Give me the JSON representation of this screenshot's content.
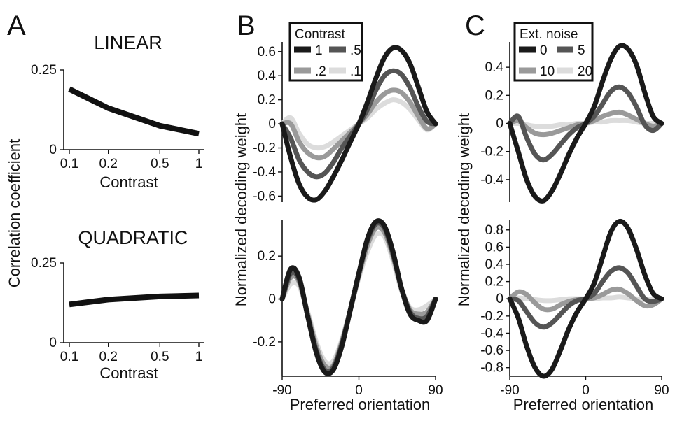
{
  "panels": {
    "a": {
      "letter": "A"
    },
    "b": {
      "letter": "B"
    },
    "c": {
      "letter": "C"
    }
  },
  "labels": {
    "correlation_coefficient": "Correlation coefficient",
    "contrast": "Contrast",
    "normalized_decoding_weight": "Normalized decoding weight",
    "preferred_orientation": "Preferred orientation",
    "linear": "LINEAR",
    "quadratic": "QUADRATIC"
  },
  "chart_data": [
    {
      "id": "A-linear",
      "type": "line",
      "title": "LINEAR",
      "xlabel": "Contrast",
      "ylabel": "Correlation coefficient",
      "x_ticks": [
        "0.1",
        "0.2",
        "0.5",
        "1"
      ],
      "y_ticks": [
        "0",
        "0.25"
      ],
      "ylim": [
        0,
        0.25
      ],
      "x_scale": "log",
      "series": [
        {
          "x": [
            0.1,
            0.2,
            0.5,
            1
          ],
          "values": [
            0.19,
            0.13,
            0.075,
            0.05
          ],
          "color": "#111111"
        }
      ]
    },
    {
      "id": "A-quadratic",
      "type": "line",
      "title": "QUADRATIC",
      "xlabel": "Contrast",
      "ylabel": "Correlation coefficient",
      "x_ticks": [
        "0.1",
        "0.2",
        "0.5",
        "1"
      ],
      "y_ticks": [
        "0",
        "0.25"
      ],
      "ylim": [
        0,
        0.25
      ],
      "x_scale": "log",
      "series": [
        {
          "x": [
            0.1,
            0.2,
            0.5,
            1
          ],
          "values": [
            0.12,
            0.135,
            0.145,
            0.148
          ],
          "color": "#111111"
        }
      ]
    },
    {
      "id": "B-top",
      "type": "line",
      "ylabel": "Normalized decoding weight",
      "xlim": [
        -90,
        90
      ],
      "ylim": [
        -0.65,
        0.68
      ],
      "y_ticks": [
        "-0.6",
        "-0.4",
        "-0.2",
        "0",
        "0.2",
        "0.4",
        "0.6"
      ],
      "legend": {
        "title": "Contrast",
        "position": "top-left",
        "labels": [
          "1",
          ".5",
          ".2",
          ".1"
        ]
      },
      "x": [
        -90,
        -80,
        -70,
        -60,
        -50,
        -40,
        -30,
        -20,
        -10,
        0,
        10,
        20,
        30,
        40,
        50,
        60,
        70,
        80,
        90
      ],
      "series": [
        {
          "name": "1",
          "color": "#1a1a1a",
          "values": [
            0,
            -0.28,
            -0.5,
            -0.61,
            -0.63,
            -0.56,
            -0.44,
            -0.3,
            -0.15,
            0,
            0.18,
            0.38,
            0.55,
            0.63,
            0.61,
            0.5,
            0.3,
            0.1,
            0
          ]
        },
        {
          "name": ".5",
          "color": "#555555",
          "values": [
            0,
            -0.12,
            -0.3,
            -0.4,
            -0.44,
            -0.41,
            -0.32,
            -0.2,
            -0.1,
            0,
            0.12,
            0.28,
            0.4,
            0.44,
            0.41,
            0.3,
            0.14,
            0.02,
            0
          ]
        },
        {
          "name": ".2",
          "color": "#9a9a9a",
          "values": [
            0,
            0.0,
            -0.15,
            -0.24,
            -0.28,
            -0.27,
            -0.21,
            -0.14,
            -0.07,
            0,
            0.08,
            0.18,
            0.25,
            0.28,
            0.26,
            0.18,
            0.06,
            -0.04,
            0
          ]
        },
        {
          "name": ".1",
          "color": "#dcdcdc",
          "values": [
            0,
            0.05,
            -0.08,
            -0.17,
            -0.2,
            -0.19,
            -0.15,
            -0.1,
            -0.05,
            0,
            0.05,
            0.12,
            0.17,
            0.2,
            0.18,
            0.12,
            0.03,
            -0.05,
            0
          ]
        }
      ]
    },
    {
      "id": "B-bottom",
      "type": "line",
      "xlabel": "Preferred orientation",
      "xlim": [
        -90,
        90
      ],
      "ylim": [
        -0.36,
        0.37
      ],
      "x_ticks": [
        "-90",
        "0",
        "90"
      ],
      "y_ticks": [
        "-0.2",
        "0",
        "0.2"
      ],
      "x": [
        -90,
        -80,
        -70,
        -60,
        -50,
        -40,
        -30,
        -20,
        -10,
        0,
        10,
        20,
        30,
        40,
        50,
        60,
        70,
        80,
        90
      ],
      "series": [
        {
          "name": "1",
          "color": "#1a1a1a",
          "values": [
            0,
            0.14,
            0.1,
            -0.08,
            -0.25,
            -0.34,
            -0.33,
            -0.22,
            -0.05,
            0.12,
            0.28,
            0.36,
            0.34,
            0.22,
            0.05,
            -0.07,
            -0.1,
            -0.1,
            0
          ]
        },
        {
          "name": ".5",
          "color": "#555555",
          "values": [
            0,
            0.12,
            0.09,
            -0.08,
            -0.24,
            -0.33,
            -0.32,
            -0.21,
            -0.05,
            0.12,
            0.27,
            0.35,
            0.33,
            0.21,
            0.05,
            -0.06,
            -0.09,
            -0.08,
            0
          ]
        },
        {
          "name": ".2",
          "color": "#9a9a9a",
          "values": [
            0,
            0.1,
            0.08,
            -0.07,
            -0.22,
            -0.31,
            -0.31,
            -0.2,
            -0.05,
            0.11,
            0.25,
            0.33,
            0.31,
            0.2,
            0.05,
            -0.05,
            -0.07,
            -0.06,
            0
          ]
        },
        {
          "name": ".1",
          "color": "#dcdcdc",
          "values": [
            0,
            0.07,
            0.06,
            -0.06,
            -0.2,
            -0.29,
            -0.29,
            -0.19,
            -0.05,
            0.1,
            0.22,
            0.3,
            0.29,
            0.18,
            0.04,
            -0.04,
            -0.05,
            -0.03,
            0
          ]
        }
      ]
    },
    {
      "id": "C-top",
      "type": "line",
      "ylabel": "Normalized decoding weight",
      "xlim": [
        -90,
        90
      ],
      "ylim": [
        -0.56,
        0.58
      ],
      "y_ticks": [
        "-0.4",
        "-0.2",
        "0",
        "0.2",
        "0.4"
      ],
      "legend": {
        "title": "Ext. noise",
        "position": "top-left",
        "labels": [
          "0",
          "5",
          "10",
          "20"
        ]
      },
      "x": [
        -90,
        -80,
        -70,
        -60,
        -50,
        -40,
        -30,
        -20,
        -10,
        0,
        10,
        20,
        30,
        40,
        50,
        60,
        70,
        80,
        90
      ],
      "series": [
        {
          "name": "0",
          "color": "#1a1a1a",
          "values": [
            0,
            -0.2,
            -0.4,
            -0.52,
            -0.55,
            -0.48,
            -0.36,
            -0.22,
            -0.1,
            0,
            0.12,
            0.3,
            0.46,
            0.55,
            0.53,
            0.42,
            0.22,
            0.05,
            0
          ]
        },
        {
          "name": "5",
          "color": "#555555",
          "values": [
            0,
            0.05,
            -0.1,
            -0.22,
            -0.26,
            -0.22,
            -0.15,
            -0.08,
            -0.03,
            0,
            0.05,
            0.14,
            0.23,
            0.26,
            0.22,
            0.12,
            -0.01,
            -0.05,
            0
          ]
        },
        {
          "name": "10",
          "color": "#9a9a9a",
          "values": [
            0,
            0.02,
            -0.03,
            -0.07,
            -0.08,
            -0.07,
            -0.05,
            -0.03,
            -0.01,
            0,
            0.02,
            0.05,
            0.07,
            0.08,
            0.06,
            0.03,
            0,
            -0.02,
            0
          ]
        },
        {
          "name": "20",
          "color": "#dcdcdc",
          "values": [
            0,
            0.0,
            -0.01,
            -0.02,
            -0.02,
            -0.02,
            -0.01,
            -0.01,
            0,
            0,
            0.01,
            0.01,
            0.02,
            0.02,
            0.02,
            0.01,
            0,
            0,
            0
          ]
        }
      ]
    },
    {
      "id": "C-bottom",
      "type": "line",
      "xlabel": "Preferred orientation",
      "xlim": [
        -90,
        90
      ],
      "ylim": [
        -0.9,
        0.92
      ],
      "x_ticks": [
        "-90",
        "0",
        "90"
      ],
      "y_ticks": [
        "-0.8",
        "-0.6",
        "-0.4",
        "-0.2",
        "0",
        "0.2",
        "0.4",
        "0.6",
        "0.8"
      ],
      "x": [
        -90,
        -80,
        -70,
        -60,
        -50,
        -40,
        -30,
        -20,
        -10,
        0,
        10,
        20,
        30,
        40,
        50,
        60,
        70,
        80,
        90
      ],
      "series": [
        {
          "name": "0",
          "color": "#1a1a1a",
          "values": [
            0,
            -0.22,
            -0.55,
            -0.8,
            -0.9,
            -0.82,
            -0.6,
            -0.35,
            -0.15,
            0,
            0.18,
            0.48,
            0.78,
            0.9,
            0.82,
            0.58,
            0.28,
            0.06,
            0
          ]
        },
        {
          "name": "5",
          "color": "#555555",
          "values": [
            0,
            -0.02,
            -0.15,
            -0.28,
            -0.33,
            -0.28,
            -0.18,
            -0.08,
            -0.02,
            0,
            0.06,
            0.2,
            0.32,
            0.36,
            0.3,
            0.15,
            0.0,
            -0.03,
            0
          ]
        },
        {
          "name": "10",
          "color": "#9a9a9a",
          "values": [
            0,
            0.08,
            0.05,
            -0.05,
            -0.12,
            -0.12,
            -0.07,
            -0.03,
            -0.01,
            0,
            0.01,
            0.05,
            0.1,
            0.11,
            0.06,
            -0.02,
            -0.08,
            -0.07,
            0
          ]
        },
        {
          "name": "20",
          "color": "#dcdcdc",
          "values": [
            0,
            0.01,
            0.0,
            -0.01,
            -0.02,
            -0.02,
            -0.01,
            0,
            0,
            0,
            0,
            0.01,
            0.01,
            0.02,
            0.01,
            0,
            -0.01,
            -0.01,
            0
          ]
        }
      ]
    }
  ]
}
